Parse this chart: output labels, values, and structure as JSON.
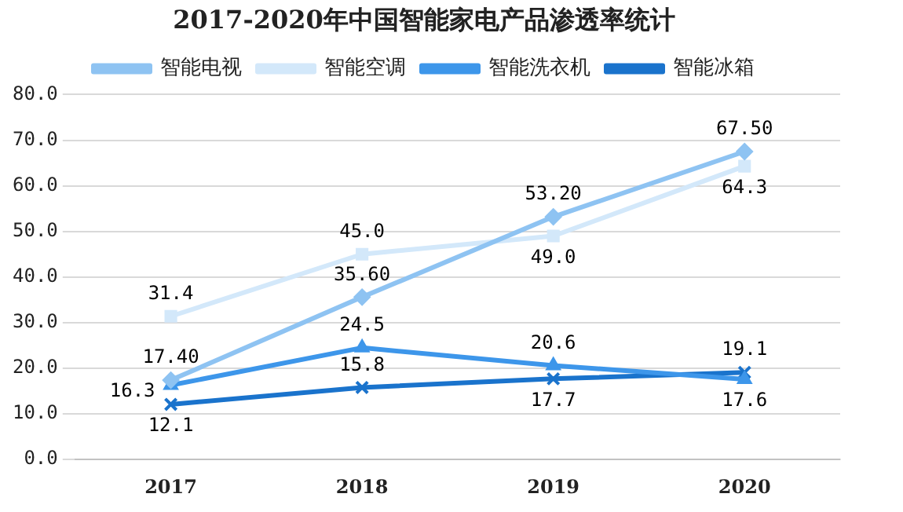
{
  "chart_data": {
    "type": "line",
    "title": "2017-2020年中国智能家电产品渗透率统计",
    "categories": [
      "2017",
      "2018",
      "2019",
      "2020"
    ],
    "series": [
      {
        "name": "智能电视",
        "color": "#8ec3f2",
        "marker": "diamond",
        "values": [
          17.4,
          35.6,
          53.2,
          67.5
        ],
        "value_labels": [
          "17.40",
          "35.60",
          "53.20",
          "67.50"
        ]
      },
      {
        "name": "智能空调",
        "color": "#d3e8fa",
        "marker": "square",
        "values": [
          31.4,
          45.0,
          49.0,
          64.3
        ],
        "value_labels": [
          "31.4",
          "45.0",
          "49.0",
          "64.3"
        ]
      },
      {
        "name": "智能洗衣机",
        "color": "#3d96ea",
        "marker": "triangle",
        "values": [
          16.3,
          24.5,
          20.6,
          17.6
        ],
        "value_labels": [
          "16.3",
          "24.5",
          "20.6",
          "17.6"
        ]
      },
      {
        "name": "智能冰箱",
        "color": "#1a73cc",
        "marker": "cross",
        "values": [
          12.1,
          15.8,
          17.7,
          19.1
        ],
        "value_labels": [
          "12.1",
          "15.8",
          "17.7",
          "19.1"
        ]
      }
    ],
    "ylim": [
      0,
      80
    ],
    "yticks": [
      {
        "value": 0,
        "label": "0.0"
      },
      {
        "value": 10,
        "label": "10.0"
      },
      {
        "value": 20,
        "label": "20.0"
      },
      {
        "value": 30,
        "label": "30.0"
      },
      {
        "value": 40,
        "label": "40.0"
      },
      {
        "value": 50,
        "label": "50.0"
      },
      {
        "value": 60,
        "label": "60.0"
      },
      {
        "value": 70,
        "label": "70.0"
      },
      {
        "value": 80,
        "label": "80.0"
      }
    ],
    "grid": "y",
    "legend": "top"
  }
}
